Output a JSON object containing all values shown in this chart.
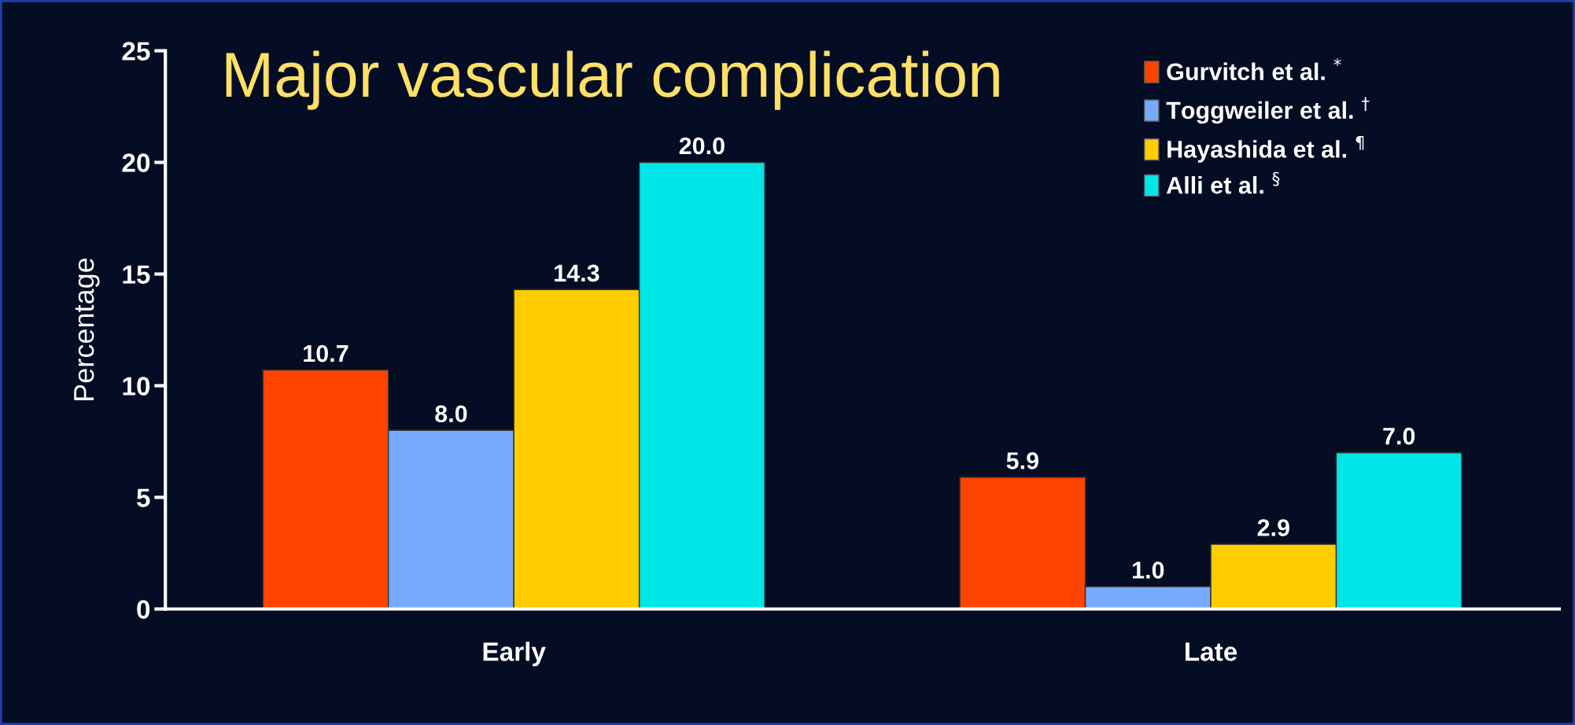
{
  "chart_data": {
    "type": "bar",
    "title": "Major vascular complication",
    "ylabel": "Percentage",
    "categories": [
      "Early",
      "Late"
    ],
    "series": [
      {
        "name": "Gurvitch et al. $^{*}$",
        "color": "#ff4400",
        "values": [
          10.7,
          5.9
        ]
      },
      {
        "name": "Toggweiler et al. $^{†}$",
        "color": "#77aaff",
        "values": [
          8.0,
          1.0
        ]
      },
      {
        "name": "Hayashida et al. $^{¶}$",
        "color": "#ffcc00",
        "values": [
          14.3,
          2.9
        ]
      },
      {
        "name": "Alli et al. $^{§}$",
        "color": "#00e5e5",
        "values": [
          20.0,
          7.0
        ]
      }
    ],
    "value_labels": [
      [
        "10.7",
        "5.9"
      ],
      [
        "8.0",
        "1.0"
      ],
      [
        "14.3",
        "2.9"
      ],
      [
        "20.0",
        "7.0"
      ]
    ],
    "ylim": [
      0,
      25
    ],
    "yticks": [
      0,
      5,
      10,
      15,
      20,
      25
    ],
    "grid": false,
    "legend": "top right"
  }
}
